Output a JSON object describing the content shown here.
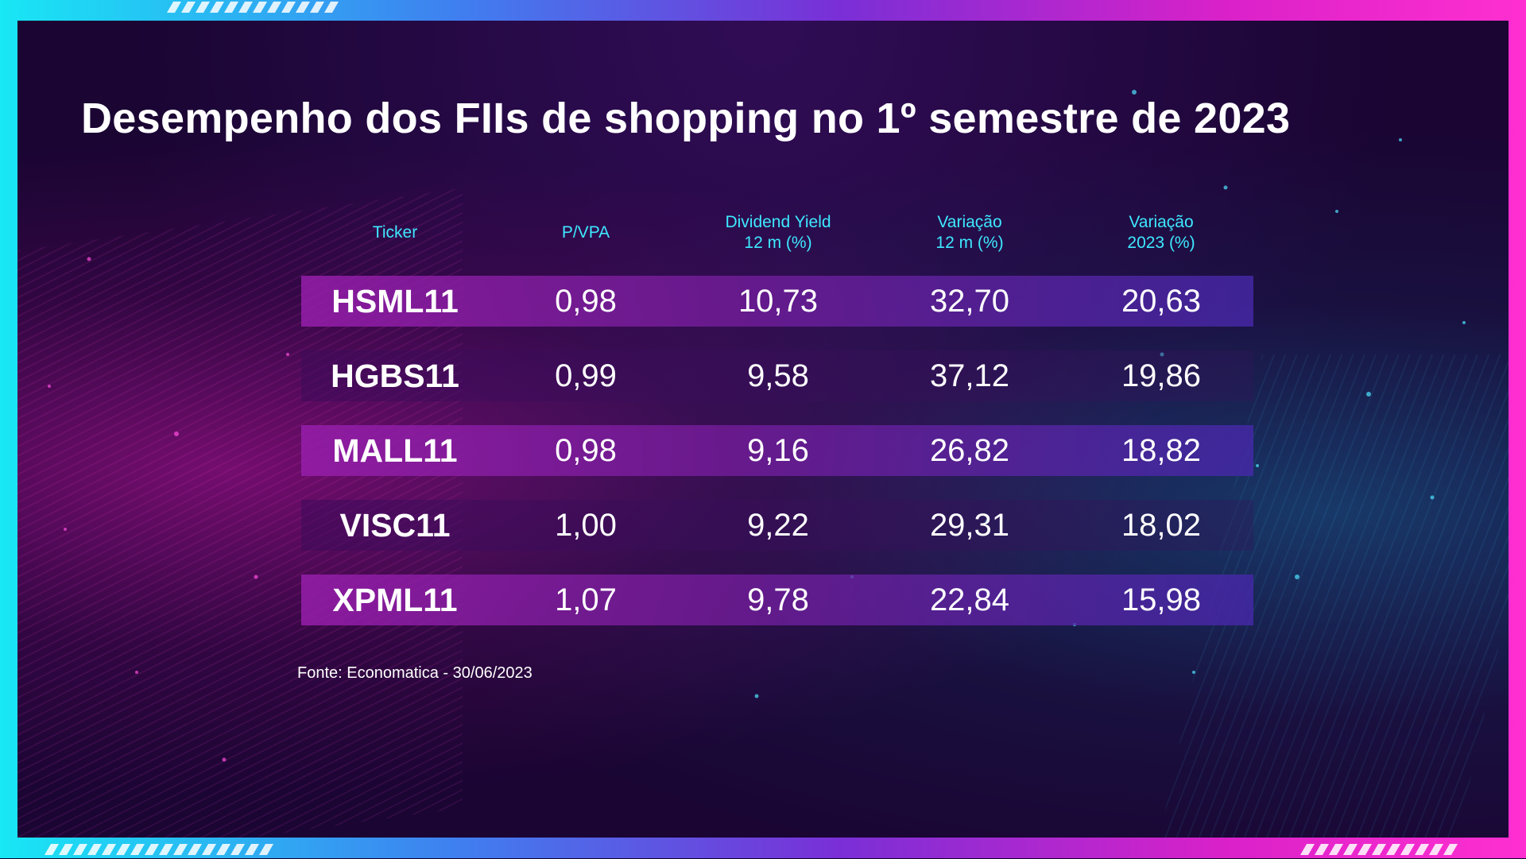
{
  "chart_data": {
    "type": "table",
    "title": "Desempenho dos FIIs de shopping no 1º semestre de 2023",
    "columns": [
      {
        "line1": "Ticker",
        "line2": ""
      },
      {
        "line1": "P/VPA",
        "line2": ""
      },
      {
        "line1": "Dividend Yield",
        "line2": "12 m (%)"
      },
      {
        "line1": "Variação",
        "line2": "12 m (%)"
      },
      {
        "line1": "Variação",
        "line2": "2023 (%)"
      }
    ],
    "rows": [
      [
        "HSML11",
        "0,98",
        "10,73",
        "32,70",
        "20,63"
      ],
      [
        "HGBS11",
        "0,99",
        "9,58",
        "37,12",
        "19,86"
      ],
      [
        "MALL11",
        "0,98",
        "9,16",
        "26,82",
        "18,82"
      ],
      [
        "VISC11",
        "1,00",
        "9,22",
        "29,31",
        "18,02"
      ],
      [
        "XPML11",
        "1,07",
        "9,78",
        "22,84",
        "15,98"
      ]
    ],
    "source": "Fonte: Economatica - 30/06/2023"
  },
  "colors": {
    "header_text": "#3ee8ff",
    "value_text": "#ffffff",
    "highlight_row": "#8a1fb0",
    "frame_left": "#18e7f5",
    "frame_right": "#ff2fd0"
  }
}
